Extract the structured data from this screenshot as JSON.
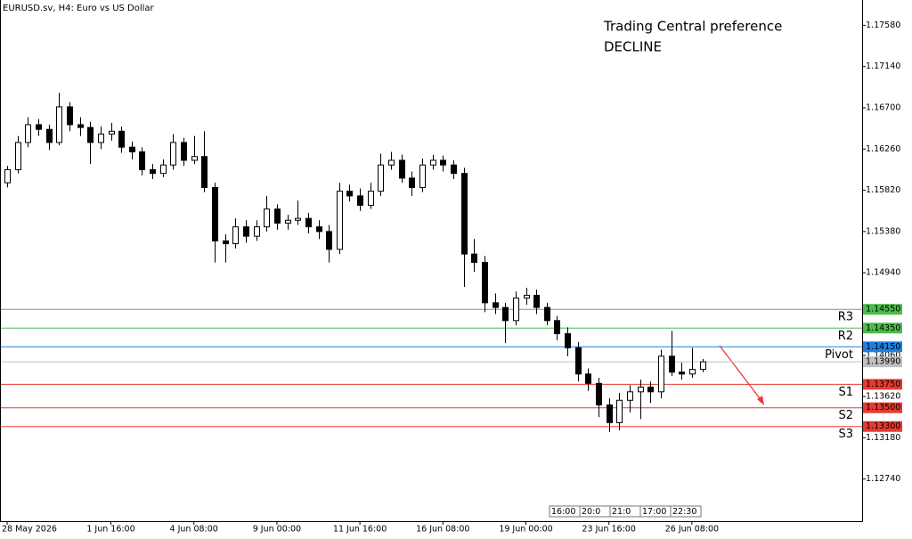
{
  "chart_data": {
    "type": "candlestick",
    "title": "EURUSD.sv, H4:  Euro vs US Dollar",
    "annotations": [
      "Trading Central preference",
      "DECLINE"
    ],
    "annotation_color": "#e8392f",
    "categories": [
      "28 May 2026",
      null,
      null,
      null,
      null,
      null,
      null,
      null,
      null,
      null,
      "1 Jun 16:00",
      null,
      null,
      null,
      null,
      null,
      null,
      null,
      "4 Jun 08:00",
      null,
      null,
      null,
      null,
      null,
      null,
      null,
      "9 Jun 00:00",
      null,
      null,
      null,
      null,
      null,
      null,
      null,
      "11 Jun 16:00",
      null,
      null,
      null,
      null,
      null,
      null,
      null,
      "16 Jun 08:00",
      null,
      null,
      null,
      null,
      null,
      null,
      null,
      "19 Jun 00:00",
      null,
      null,
      null,
      null,
      null,
      null,
      null,
      "23 Jun 16:00",
      null,
      null,
      null,
      null,
      null,
      null,
      null,
      "26 Jun 08:00",
      null
    ],
    "open": [
      1.159,
      1.1604,
      1.1633,
      1.1652,
      1.1647,
      1.1633,
      1.1671,
      1.1652,
      1.1649,
      1.1633,
      1.1642,
      1.1645,
      1.1628,
      1.1623,
      1.1604,
      1.16,
      1.1609,
      1.1633,
      1.1614,
      1.1618,
      1.1585,
      1.1528,
      1.1525,
      1.1543,
      1.1533,
      1.1543,
      1.1562,
      1.1547,
      1.155,
      1.1552,
      1.1543,
      1.1538,
      1.1519,
      1.1581,
      1.1576,
      1.1566,
      1.1581,
      1.1609,
      1.1614,
      1.1595,
      1.1585,
      1.1609,
      1.1614,
      1.1609,
      1.16,
      1.1514,
      1.1505,
      1.1462,
      1.1457,
      1.1443,
      1.1467,
      1.147,
      1.1457,
      1.1443,
      1.1429,
      1.1414,
      1.1386,
      1.1376,
      1.1353,
      1.1334,
      1.1358,
      1.1367,
      1.1372,
      1.1367,
      1.1405,
      1.1388,
      1.1386,
      1.1391
    ],
    "high": [
      1.1608,
      1.164,
      1.166,
      1.1658,
      1.1652,
      1.1686,
      1.1676,
      1.166,
      1.1655,
      1.165,
      1.1654,
      1.165,
      1.1634,
      1.1628,
      1.161,
      1.1615,
      1.1642,
      1.1638,
      1.164,
      1.1645,
      1.159,
      1.1535,
      1.1552,
      1.155,
      1.155,
      1.1576,
      1.1567,
      1.1556,
      1.1571,
      1.1558,
      1.155,
      1.1545,
      1.159,
      1.1588,
      1.1584,
      1.159,
      1.1621,
      1.1623,
      1.162,
      1.1602,
      1.1616,
      1.162,
      1.1619,
      1.1614,
      1.1606,
      1.153,
      1.1512,
      1.1472,
      1.1462,
      1.1474,
      1.1478,
      1.1476,
      1.1462,
      1.1448,
      1.1436,
      1.142,
      1.1392,
      1.1382,
      1.136,
      1.1366,
      1.1374,
      1.138,
      1.1378,
      1.1412,
      1.1432,
      1.1398,
      1.1414,
      1.1402
    ],
    "low": [
      1.1585,
      1.16,
      1.1628,
      1.164,
      1.1625,
      1.163,
      1.1645,
      1.164,
      1.161,
      1.1626,
      1.1635,
      1.1622,
      1.1615,
      1.1598,
      1.1594,
      1.1596,
      1.1604,
      1.1608,
      1.161,
      1.158,
      1.1505,
      1.1505,
      1.152,
      1.1526,
      1.1528,
      1.1538,
      1.154,
      1.154,
      1.1545,
      1.1536,
      1.153,
      1.1505,
      1.1514,
      1.157,
      1.156,
      1.1562,
      1.1576,
      1.1604,
      1.159,
      1.1576,
      1.158,
      1.1604,
      1.1602,
      1.1594,
      1.1479,
      1.1495,
      1.1452,
      1.145,
      1.1419,
      1.1438,
      1.146,
      1.145,
      1.1438,
      1.1422,
      1.1405,
      1.1378,
      1.1368,
      1.134,
      1.1324,
      1.1326,
      1.1345,
      1.1338,
      1.1355,
      1.136,
      1.1384,
      1.138,
      1.1382,
      1.1388
    ],
    "close": [
      1.1604,
      1.1633,
      1.1652,
      1.1647,
      1.1633,
      1.1671,
      1.1652,
      1.1649,
      1.1633,
      1.1642,
      1.1645,
      1.1628,
      1.1623,
      1.1604,
      1.16,
      1.1609,
      1.1633,
      1.1614,
      1.1618,
      1.1585,
      1.1528,
      1.1525,
      1.1543,
      1.1533,
      1.1543,
      1.1562,
      1.1547,
      1.155,
      1.1552,
      1.1543,
      1.1538,
      1.1519,
      1.1581,
      1.1576,
      1.1566,
      1.1581,
      1.1609,
      1.1614,
      1.1595,
      1.1585,
      1.1609,
      1.1614,
      1.1609,
      1.16,
      1.1514,
      1.1505,
      1.1462,
      1.1457,
      1.1443,
      1.1467,
      1.147,
      1.1457,
      1.1443,
      1.1429,
      1.1414,
      1.1386,
      1.1376,
      1.1353,
      1.1334,
      1.1358,
      1.1367,
      1.1372,
      1.1367,
      1.1405,
      1.1388,
      1.1386,
      1.1391,
      1.1399
    ],
    "up_color": "#ffffff",
    "down_color": "#000000",
    "line_color": "#000000",
    "ylim": [
      1.1229,
      1.1785
    ],
    "yticks": [
      {
        "value": 1.1758,
        "label": "1.17580"
      },
      {
        "value": 1.1714,
        "label": "1.17140"
      },
      {
        "value": 1.167,
        "label": "1.16700"
      },
      {
        "value": 1.1626,
        "label": "1.16260"
      },
      {
        "value": 1.1582,
        "label": "1.15820"
      },
      {
        "value": 1.1538,
        "label": "1.15380"
      },
      {
        "value": 1.1494,
        "label": "1.14940"
      },
      {
        "value": 1.1406,
        "label": "1.14060"
      },
      {
        "value": 1.1362,
        "label": "1.13620"
      },
      {
        "value": 1.1318,
        "label": "1.13180"
      },
      {
        "value": 1.1274,
        "label": "1.12740"
      }
    ],
    "levels": [
      {
        "name": "R3",
        "value": 1.1455,
        "label": "1.14550",
        "color": "#4cbb4c"
      },
      {
        "name": "R2",
        "value": 1.1435,
        "label": "1.14350",
        "color": "#4cbb4c"
      },
      {
        "name": "Pivot",
        "value": 1.1415,
        "label": "1.14150",
        "color": "#1e7fe0"
      },
      {
        "name": "S1",
        "value": 1.1375,
        "label": "1.13750",
        "color": "#e8392f"
      },
      {
        "name": "S2",
        "value": 1.135,
        "label": "1.13500",
        "color": "#e8392f"
      },
      {
        "name": "S3",
        "value": 1.133,
        "label": "1.13300",
        "color": "#e8392f"
      }
    ],
    "current_price": {
      "value": 1.1399,
      "label": "1.13990",
      "color": "#c0c0c0"
    },
    "time_markers": [
      "16:00",
      "20:0",
      "21:0",
      "17:00",
      "22:30"
    ]
  }
}
